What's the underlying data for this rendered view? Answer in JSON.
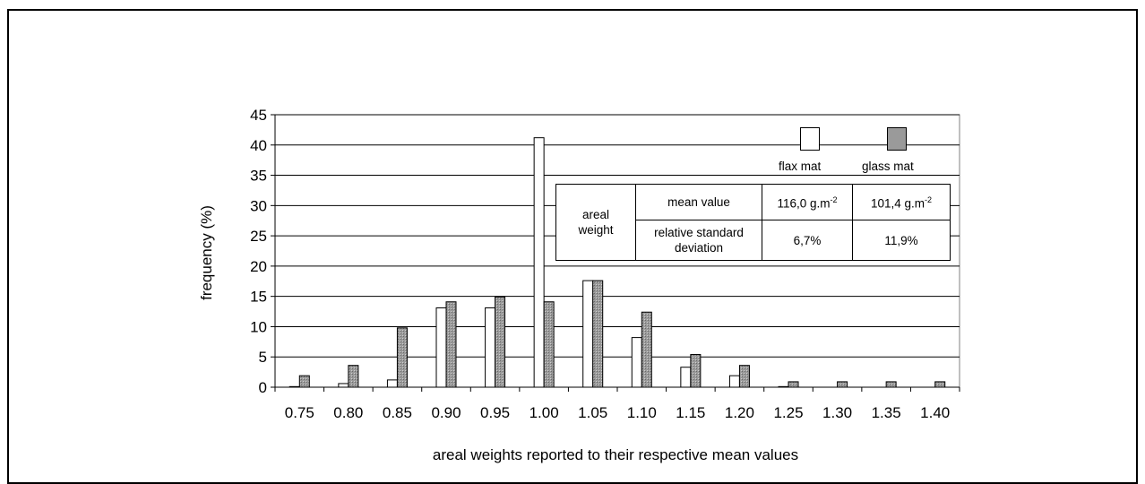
{
  "chart_data": {
    "type": "bar",
    "xlabel": "areal weights reported to their respective mean values",
    "ylabel": "frequency (%)",
    "ylim": [
      0,
      45
    ],
    "yticks": [
      "0",
      "5",
      "10",
      "15",
      "20",
      "25",
      "30",
      "35",
      "40",
      "45"
    ],
    "grid": true,
    "legend_position": "top-right",
    "categories": [
      "0.75",
      "0.80",
      "0.85",
      "0.90",
      "0.95",
      "1.00",
      "1.05",
      "1.10",
      "1.15",
      "1.20",
      "1.25",
      "1.30",
      "1.35",
      "1.40"
    ],
    "series": [
      {
        "name": "flax mat",
        "color": "#ffffff",
        "values": [
          0.1,
          0.6,
          1.2,
          13.1,
          13.1,
          41.2,
          17.6,
          8.2,
          3.3,
          1.9,
          0.1,
          0,
          0,
          0
        ]
      },
      {
        "name": "glass mat",
        "color": "#9a9a9a",
        "values": [
          1.9,
          3.6,
          9.8,
          14.1,
          14.9,
          14.1,
          17.6,
          12.4,
          5.4,
          3.6,
          0.9,
          0.9,
          0.9,
          0.9
        ]
      }
    ]
  },
  "stats_table": {
    "row_header": [
      "areal",
      "weight"
    ],
    "rows": [
      {
        "label": "mean value",
        "flax": "116,0 g.m",
        "flax_exp": "-2",
        "glass": "101,4 g.m",
        "glass_exp": "-2"
      },
      {
        "label_lines": [
          "relative standard",
          "deviation"
        ],
        "flax": "6,7%",
        "glass": "11,9%"
      }
    ]
  }
}
